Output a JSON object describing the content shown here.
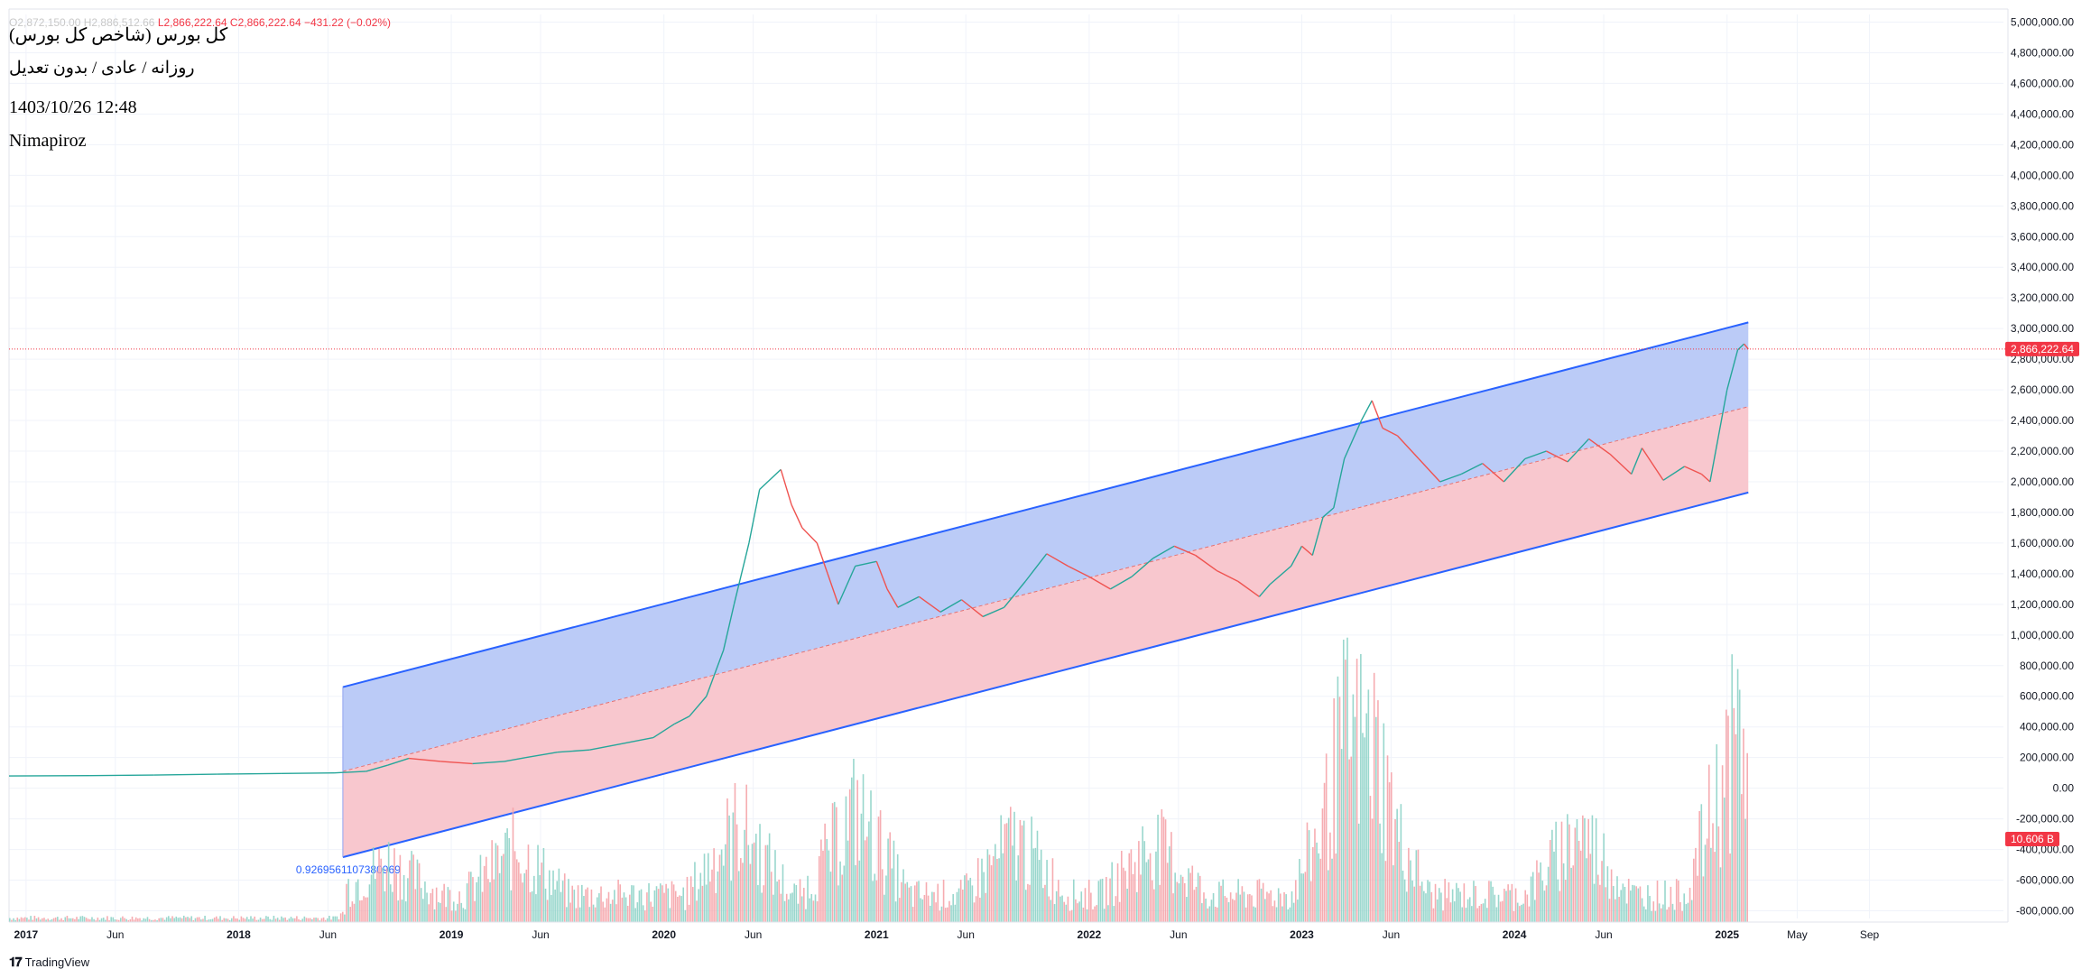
{
  "legend": {
    "ohlc_prefix": "O2,872,150.00  H2,886,512.66",
    "low": "L2,866,222.64",
    "close": "C2,866,222.64",
    "change": "−431.22 (−0.02%)",
    "title": "کل بورس (شاخص کل بورس)",
    "subtitle": "روزانه / عادی / بدون تعدیل",
    "timestamp": "1403/10/26 12:48",
    "author": "Nimapiroz"
  },
  "brand": {
    "name": "TradingView"
  },
  "colors": {
    "up": "#26a69a",
    "down": "#ef5350",
    "channel_line": "#2962ff",
    "channel_upper_fill": "#b7c8f7",
    "channel_lower_fill": "#f8c4cb",
    "price_badge": "#f23645"
  },
  "chart_data": {
    "type": "line",
    "title": "کل بورس (شاخص کل بورس)",
    "ylim": [
      -850000,
      5050000
    ],
    "grid": true,
    "y_ticks": [
      "5,000,000.00",
      "4,800,000.00",
      "4,600,000.00",
      "4,400,000.00",
      "4,200,000.00",
      "4,000,000.00",
      "3,800,000.00",
      "3,600,000.00",
      "3,400,000.00",
      "3,200,000.00",
      "3,000,000.00",
      "2,800,000.00",
      "2,600,000.00",
      "2,400,000.00",
      "2,200,000.00",
      "2,000,000.00",
      "1,800,000.00",
      "1,600,000.00",
      "1,400,000.00",
      "1,200,000.00",
      "1,000,000.00",
      "800,000.00",
      "600,000.00",
      "400,000.00",
      "200,000.00",
      "0.00",
      "-200,000.00",
      "-400,000.00",
      "-600,000.00",
      "-800,000.00"
    ],
    "x_ticks": [
      {
        "t": 2017.0,
        "label": "2017"
      },
      {
        "t": 2017.42,
        "label": "Jun"
      },
      {
        "t": 2018.0,
        "label": "2018"
      },
      {
        "t": 2018.42,
        "label": "Jun"
      },
      {
        "t": 2019.0,
        "label": "2019"
      },
      {
        "t": 2019.42,
        "label": "Jun"
      },
      {
        "t": 2020.0,
        "label": "2020"
      },
      {
        "t": 2020.42,
        "label": "Jun"
      },
      {
        "t": 2021.0,
        "label": "2021"
      },
      {
        "t": 2021.42,
        "label": "Jun"
      },
      {
        "t": 2022.0,
        "label": "2022"
      },
      {
        "t": 2022.42,
        "label": "Jun"
      },
      {
        "t": 2023.0,
        "label": "2023"
      },
      {
        "t": 2023.42,
        "label": "Jun"
      },
      {
        "t": 2024.0,
        "label": "2024"
      },
      {
        "t": 2024.42,
        "label": "Jun"
      },
      {
        "t": 2025.0,
        "label": "2025"
      },
      {
        "t": 2025.33,
        "label": "May"
      },
      {
        "t": 2025.67,
        "label": "Sep"
      }
    ],
    "x_range": [
      2016.92,
      2026.3
    ],
    "series": [
      {
        "name": "",
        "points": [
          [
            2016.92,
            80000
          ],
          [
            2017.3,
            82000
          ],
          [
            2017.6,
            86000
          ],
          [
            2017.9,
            92000
          ],
          [
            2018.2,
            96000
          ],
          [
            2018.45,
            100000
          ],
          [
            2018.6,
            110000
          ],
          [
            2018.7,
            150000
          ],
          [
            2018.8,
            195000
          ],
          [
            2018.95,
            175000
          ],
          [
            2019.1,
            160000
          ],
          [
            2019.25,
            175000
          ],
          [
            2019.35,
            200000
          ],
          [
            2019.5,
            235000
          ],
          [
            2019.65,
            250000
          ],
          [
            2019.8,
            290000
          ],
          [
            2019.95,
            330000
          ],
          [
            2020.05,
            420000
          ],
          [
            2020.12,
            470000
          ],
          [
            2020.2,
            600000
          ],
          [
            2020.28,
            900000
          ],
          [
            2020.33,
            1200000
          ],
          [
            2020.4,
            1600000
          ],
          [
            2020.45,
            1950000
          ],
          [
            2020.55,
            2080000
          ],
          [
            2020.6,
            1850000
          ],
          [
            2020.65,
            1700000
          ],
          [
            2020.72,
            1600000
          ],
          [
            2020.77,
            1400000
          ],
          [
            2020.82,
            1200000
          ],
          [
            2020.9,
            1450000
          ],
          [
            2021.0,
            1480000
          ],
          [
            2021.05,
            1300000
          ],
          [
            2021.1,
            1180000
          ],
          [
            2021.2,
            1250000
          ],
          [
            2021.3,
            1150000
          ],
          [
            2021.4,
            1230000
          ],
          [
            2021.5,
            1120000
          ],
          [
            2021.6,
            1180000
          ],
          [
            2021.7,
            1350000
          ],
          [
            2021.8,
            1530000
          ],
          [
            2021.9,
            1450000
          ],
          [
            2022.0,
            1380000
          ],
          [
            2022.1,
            1300000
          ],
          [
            2022.2,
            1380000
          ],
          [
            2022.3,
            1500000
          ],
          [
            2022.4,
            1580000
          ],
          [
            2022.5,
            1520000
          ],
          [
            2022.6,
            1420000
          ],
          [
            2022.7,
            1350000
          ],
          [
            2022.8,
            1250000
          ],
          [
            2022.85,
            1330000
          ],
          [
            2022.95,
            1450000
          ],
          [
            2023.0,
            1580000
          ],
          [
            2023.05,
            1520000
          ],
          [
            2023.1,
            1770000
          ],
          [
            2023.15,
            1830000
          ],
          [
            2023.2,
            2150000
          ],
          [
            2023.28,
            2400000
          ],
          [
            2023.33,
            2530000
          ],
          [
            2023.38,
            2350000
          ],
          [
            2023.45,
            2300000
          ],
          [
            2023.55,
            2150000
          ],
          [
            2023.65,
            2000000
          ],
          [
            2023.75,
            2050000
          ],
          [
            2023.85,
            2120000
          ],
          [
            2023.95,
            2000000
          ],
          [
            2024.05,
            2150000
          ],
          [
            2024.15,
            2200000
          ],
          [
            2024.25,
            2130000
          ],
          [
            2024.35,
            2280000
          ],
          [
            2024.45,
            2180000
          ],
          [
            2024.55,
            2050000
          ],
          [
            2024.6,
            2220000
          ],
          [
            2024.7,
            2010000
          ],
          [
            2024.8,
            2100000
          ],
          [
            2024.88,
            2050000
          ],
          [
            2024.92,
            2000000
          ],
          [
            2024.96,
            2300000
          ],
          [
            2025.0,
            2600000
          ],
          [
            2025.05,
            2860000
          ],
          [
            2025.08,
            2900000
          ],
          [
            2025.1,
            2866222.64
          ]
        ]
      }
    ],
    "current_price_label": "2,866,222.64",
    "volume_label": "10.606 B",
    "annotation": "0.92695611073809​69",
    "channel": {
      "start_t": 2018.49,
      "end_t": 2025.1,
      "upper": [
        660000,
        3040000
      ],
      "middle": [
        110000,
        2490000
      ],
      "lower": [
        -450000,
        1930000
      ]
    }
  }
}
